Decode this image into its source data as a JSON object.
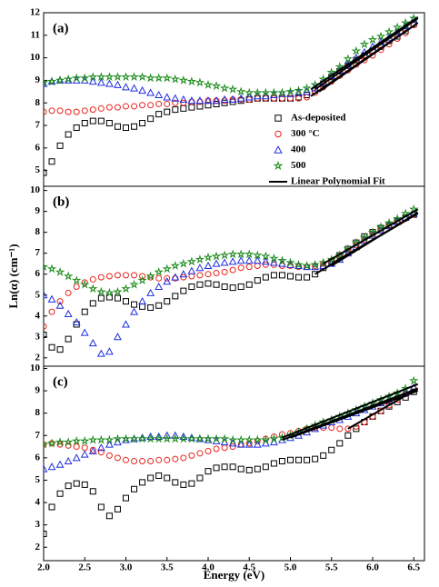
{
  "chart_data": [
    {
      "type": "scatter",
      "label": "(a)",
      "xlim": [
        2.0,
        6.63
      ],
      "ylim": [
        4.3,
        12
      ],
      "yticks": [
        5,
        6,
        7,
        8,
        9,
        10,
        11,
        12
      ],
      "legend": "lower right",
      "x": [
        2.0,
        2.1,
        2.2,
        2.3,
        2.4,
        2.5,
        2.6,
        2.7,
        2.8,
        2.9,
        3.0,
        3.1,
        3.2,
        3.3,
        3.4,
        3.5,
        3.6,
        3.7,
        3.8,
        3.9,
        4.0,
        4.1,
        4.2,
        4.3,
        4.4,
        4.5,
        4.6,
        4.7,
        4.8,
        4.9,
        5.0,
        5.1,
        5.2,
        5.3,
        5.4,
        5.5,
        5.6,
        5.7,
        5.8,
        5.9,
        6.0,
        6.1,
        6.2,
        6.3,
        6.4,
        6.5
      ],
      "series": [
        {
          "name": "As-deposited",
          "color": "#000000",
          "marker": "square",
          "values": [
            4.9,
            5.4,
            6.1,
            6.6,
            6.9,
            7.1,
            7.2,
            7.2,
            7.1,
            6.95,
            6.9,
            6.95,
            7.1,
            7.3,
            7.5,
            7.6,
            7.7,
            7.75,
            7.8,
            7.85,
            7.9,
            7.95,
            8.0,
            8.05,
            8.1,
            8.15,
            8.2,
            8.2,
            8.2,
            8.2,
            8.2,
            8.25,
            8.35,
            8.55,
            8.85,
            9.15,
            9.4,
            9.65,
            9.9,
            10.1,
            10.3,
            10.5,
            10.75,
            10.95,
            11.2,
            11.5
          ]
        },
        {
          "name": "300 °C",
          "color": "#e8241c",
          "marker": "circle",
          "values": [
            7.6,
            7.65,
            7.65,
            7.6,
            7.6,
            7.65,
            7.7,
            7.75,
            7.8,
            7.8,
            7.85,
            7.85,
            7.9,
            7.9,
            7.95,
            7.95,
            8.0,
            8.0,
            8.05,
            8.05,
            8.1,
            8.1,
            8.1,
            8.15,
            8.15,
            8.15,
            8.2,
            8.2,
            8.2,
            8.2,
            8.2,
            8.2,
            8.25,
            8.45,
            8.7,
            8.95,
            9.2,
            9.45,
            9.7,
            9.9,
            10.1,
            10.35,
            10.6,
            10.85,
            11.1,
            11.45
          ]
        },
        {
          "name": "400",
          "color": "#1f2fe0",
          "marker": "triangle",
          "values": [
            8.85,
            8.95,
            9.0,
            9.0,
            9.0,
            9.0,
            8.95,
            8.9,
            8.85,
            8.8,
            8.7,
            8.65,
            8.55,
            8.45,
            8.35,
            8.25,
            8.2,
            8.15,
            8.1,
            8.1,
            8.1,
            8.1,
            8.15,
            8.15,
            8.2,
            8.25,
            8.3,
            8.3,
            8.35,
            8.4,
            8.4,
            8.45,
            8.5,
            8.65,
            8.9,
            9.2,
            9.45,
            9.7,
            10.0,
            10.25,
            10.5,
            10.7,
            10.9,
            11.15,
            11.4,
            11.7
          ]
        },
        {
          "name": "500",
          "color": "#1a8a1a",
          "marker": "star",
          "values": [
            8.9,
            8.95,
            9.0,
            9.05,
            9.1,
            9.1,
            9.15,
            9.15,
            9.15,
            9.15,
            9.15,
            9.15,
            9.15,
            9.1,
            9.1,
            9.1,
            9.05,
            9.0,
            8.95,
            8.9,
            8.8,
            8.75,
            8.65,
            8.6,
            8.5,
            8.45,
            8.45,
            8.45,
            8.45,
            8.45,
            8.5,
            8.55,
            8.65,
            8.8,
            9.05,
            9.35,
            9.6,
            9.95,
            10.3,
            10.6,
            10.8,
            10.95,
            11.15,
            11.35,
            11.55,
            11.75
          ]
        },
        {
          "name": "Linear Polynomial Fit",
          "color": "#000000",
          "style": "line",
          "x": [
            5.35,
            6.55,
            null,
            5.25,
            6.55,
            null,
            5.3,
            6.55,
            null,
            5.25,
            6.55
          ],
          "values": [
            8.5,
            11.55,
            null,
            8.3,
            11.55,
            null,
            8.6,
            11.75,
            null,
            8.6,
            11.8
          ]
        }
      ]
    },
    {
      "type": "scatter",
      "label": "(b)",
      "ylabel": "Ln(α) (cm⁻¹)",
      "xlim": [
        2.0,
        6.63
      ],
      "ylim": [
        1.6,
        10.2
      ],
      "yticks": [
        2,
        3,
        4,
        5,
        6,
        7,
        8,
        9,
        10
      ],
      "x": [
        2.0,
        2.1,
        2.2,
        2.3,
        2.4,
        2.5,
        2.6,
        2.7,
        2.8,
        2.9,
        3.0,
        3.1,
        3.2,
        3.3,
        3.4,
        3.5,
        3.6,
        3.7,
        3.8,
        3.9,
        4.0,
        4.1,
        4.2,
        4.3,
        4.4,
        4.5,
        4.6,
        4.7,
        4.8,
        4.9,
        5.0,
        5.1,
        5.2,
        5.3,
        5.4,
        5.5,
        5.6,
        5.7,
        5.8,
        5.9,
        6.0,
        6.1,
        6.2,
        6.3,
        6.4,
        6.5
      ],
      "series": [
        {
          "color": "#000000",
          "marker": "square",
          "values": [
            3.1,
            2.5,
            2.4,
            2.9,
            3.6,
            4.2,
            4.6,
            4.85,
            4.9,
            4.85,
            4.7,
            4.55,
            4.45,
            4.4,
            4.5,
            4.7,
            4.95,
            5.2,
            5.4,
            5.5,
            5.55,
            5.5,
            5.4,
            5.35,
            5.4,
            5.5,
            5.7,
            5.85,
            5.95,
            5.95,
            5.9,
            5.85,
            5.85,
            6.0,
            6.3,
            6.6,
            6.9,
            7.2,
            7.5,
            7.8,
            8.0,
            8.2,
            8.35,
            8.55,
            8.7,
            8.85
          ]
        },
        {
          "color": "#e8241c",
          "marker": "circle",
          "values": [
            3.5,
            4.2,
            4.7,
            5.1,
            5.4,
            5.6,
            5.75,
            5.85,
            5.9,
            5.95,
            5.95,
            5.95,
            5.9,
            5.85,
            5.8,
            5.8,
            5.8,
            5.85,
            5.9,
            5.95,
            6.0,
            6.05,
            6.1,
            6.2,
            6.3,
            6.35,
            6.4,
            6.45,
            6.45,
            6.4,
            6.4,
            6.35,
            6.35,
            6.4,
            6.5,
            6.6,
            6.8,
            7.1,
            7.4,
            7.65,
            7.9,
            8.1,
            8.3,
            8.5,
            8.65,
            8.85
          ]
        },
        {
          "color": "#1f2fe0",
          "marker": "triangle",
          "values": [
            5.0,
            4.8,
            4.5,
            4.1,
            3.7,
            3.2,
            2.7,
            2.2,
            2.3,
            3.0,
            3.6,
            4.2,
            4.7,
            5.1,
            5.4,
            5.65,
            5.85,
            6.0,
            6.15,
            6.3,
            6.4,
            6.5,
            6.55,
            6.6,
            6.65,
            6.65,
            6.65,
            6.6,
            6.55,
            6.5,
            6.45,
            6.4,
            6.35,
            6.35,
            6.4,
            6.5,
            6.7,
            7.0,
            7.3,
            7.6,
            7.85,
            8.1,
            8.3,
            8.5,
            8.7,
            8.9
          ]
        },
        {
          "color": "#1a8a1a",
          "marker": "star",
          "values": [
            6.35,
            6.25,
            6.1,
            5.9,
            5.7,
            5.5,
            5.3,
            5.15,
            5.1,
            5.15,
            5.3,
            5.5,
            5.7,
            5.9,
            6.1,
            6.25,
            6.4,
            6.5,
            6.6,
            6.7,
            6.8,
            6.85,
            6.9,
            6.95,
            6.95,
            6.95,
            6.9,
            6.85,
            6.75,
            6.65,
            6.55,
            6.45,
            6.4,
            6.45,
            6.55,
            6.7,
            6.9,
            7.2,
            7.5,
            7.75,
            8.0,
            8.25,
            8.45,
            8.65,
            8.9,
            9.1
          ]
        },
        {
          "color": "#000000",
          "style": "line",
          "x": [
            5.3,
            6.55,
            null,
            5.5,
            6.55,
            null,
            5.5,
            6.55,
            null,
            5.4,
            6.55
          ],
          "values": [
            6.0,
            8.9,
            null,
            6.5,
            8.9,
            null,
            6.4,
            8.95,
            null,
            6.5,
            9.1
          ]
        }
      ]
    },
    {
      "type": "scatter",
      "label": "(c)",
      "xlabel": "Energy (eV)",
      "xlim": [
        2.0,
        6.63
      ],
      "ylim": [
        1.4,
        10.1
      ],
      "yticks": [
        2,
        3,
        4,
        5,
        6,
        7,
        8,
        9,
        10
      ],
      "xticks": [
        {
          "value": 2,
          "label": "2.0"
        },
        2.5,
        {
          "value": 3,
          "label": "3.0"
        },
        3.5,
        {
          "value": 4,
          "label": "4.0"
        },
        4.5,
        {
          "value": 5,
          "label": "5.0"
        },
        5.5,
        {
          "value": 6,
          "label": "6.0"
        },
        6.5
      ],
      "x": [
        2.0,
        2.1,
        2.2,
        2.3,
        2.4,
        2.5,
        2.6,
        2.7,
        2.8,
        2.9,
        3.0,
        3.1,
        3.2,
        3.3,
        3.4,
        3.5,
        3.6,
        3.7,
        3.8,
        3.9,
        4.0,
        4.1,
        4.2,
        4.3,
        4.4,
        4.5,
        4.6,
        4.7,
        4.8,
        4.9,
        5.0,
        5.1,
        5.2,
        5.3,
        5.4,
        5.5,
        5.6,
        5.7,
        5.8,
        5.9,
        6.0,
        6.1,
        6.2,
        6.3,
        6.4,
        6.5
      ],
      "series": [
        {
          "color": "#000000",
          "marker": "square",
          "values": [
            2.6,
            3.8,
            4.4,
            4.75,
            4.85,
            4.8,
            4.5,
            3.8,
            3.4,
            3.7,
            4.2,
            4.6,
            4.9,
            5.1,
            5.2,
            5.1,
            4.9,
            4.8,
            4.85,
            5.1,
            5.4,
            5.55,
            5.6,
            5.6,
            5.5,
            5.45,
            5.5,
            5.6,
            5.75,
            5.85,
            5.9,
            5.9,
            5.9,
            5.95,
            6.1,
            6.35,
            6.65,
            7.0,
            7.3,
            7.6,
            7.85,
            8.1,
            8.3,
            8.5,
            8.7,
            8.95
          ]
        },
        {
          "color": "#e8241c",
          "marker": "circle",
          "values": [
            6.6,
            6.65,
            6.6,
            6.55,
            6.5,
            6.45,
            6.35,
            6.25,
            6.1,
            6.0,
            5.9,
            5.85,
            5.85,
            5.85,
            5.9,
            5.9,
            5.95,
            6.0,
            6.1,
            6.2,
            6.3,
            6.4,
            6.45,
            6.5,
            6.6,
            6.65,
            6.75,
            6.85,
            6.95,
            7.05,
            7.1,
            7.2,
            7.3,
            7.35,
            7.35,
            7.35,
            7.3,
            7.3,
            7.4,
            7.6,
            7.85,
            8.1,
            8.35,
            8.6,
            8.85,
            9.1
          ]
        },
        {
          "color": "#1f2fe0",
          "marker": "triangle",
          "values": [
            5.5,
            5.6,
            5.7,
            5.85,
            6.0,
            6.15,
            6.3,
            6.45,
            6.6,
            6.7,
            6.8,
            6.85,
            6.9,
            6.95,
            6.95,
            7.0,
            7.0,
            6.95,
            6.9,
            6.85,
            6.8,
            6.75,
            6.7,
            6.65,
            6.6,
            6.6,
            6.6,
            6.65,
            6.7,
            6.8,
            6.9,
            7.0,
            7.15,
            7.3,
            7.45,
            7.6,
            7.7,
            7.85,
            8.0,
            8.15,
            8.3,
            8.45,
            8.6,
            8.75,
            8.9,
            9.15
          ]
        },
        {
          "color": "#1a8a1a",
          "marker": "star",
          "values": [
            6.6,
            6.65,
            6.7,
            6.7,
            6.75,
            6.75,
            6.8,
            6.8,
            6.8,
            6.85,
            6.85,
            6.85,
            6.85,
            6.85,
            6.85,
            6.85,
            6.85,
            6.85,
            6.85,
            6.85,
            6.85,
            6.85,
            6.85,
            6.8,
            6.8,
            6.8,
            6.8,
            6.8,
            6.85,
            6.9,
            7.0,
            7.15,
            7.3,
            7.45,
            7.6,
            7.7,
            7.85,
            8.0,
            8.15,
            8.3,
            8.45,
            8.6,
            8.75,
            8.9,
            9.1,
            9.45
          ]
        },
        {
          "color": "#000000",
          "style": "line",
          "x": [
            4.9,
            6.55,
            null,
            5.7,
            6.55,
            null,
            5.0,
            6.55,
            null,
            4.9,
            6.55
          ],
          "values": [
            6.8,
            9.1,
            null,
            7.3,
            9.1,
            null,
            6.9,
            9.0,
            null,
            6.9,
            9.3
          ]
        }
      ]
    }
  ]
}
